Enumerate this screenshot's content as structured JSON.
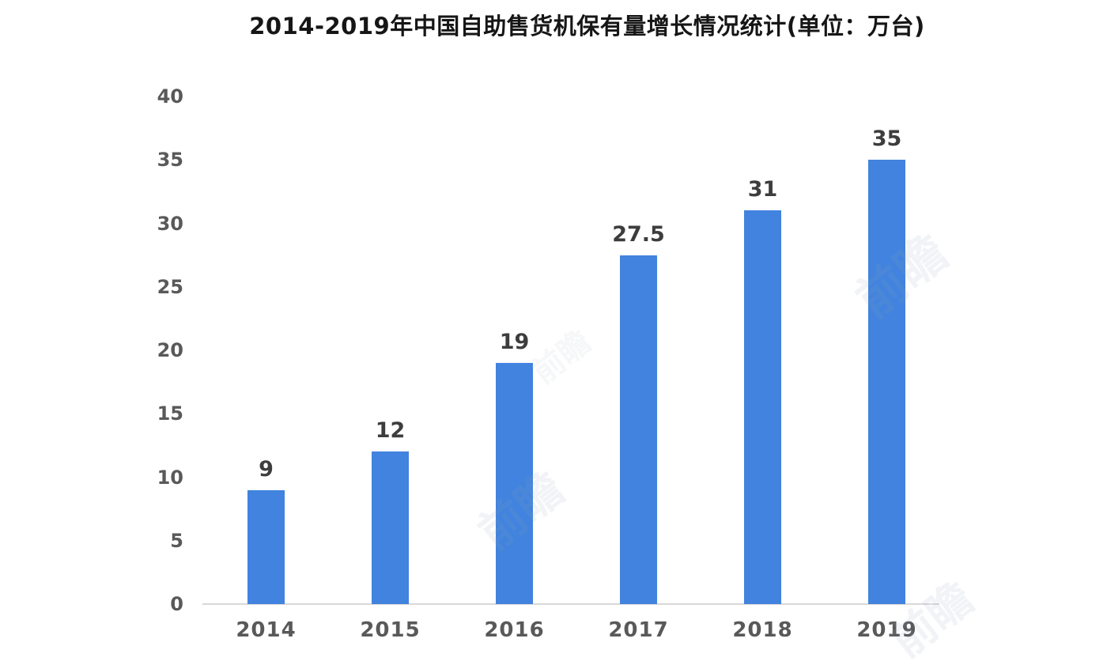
{
  "chart_data": {
    "type": "bar",
    "title": "2014-2019年中国自助售货机保有量增长情况统计(单位：万台)",
    "categories": [
      "2014",
      "2015",
      "2016",
      "2017",
      "2018",
      "2019"
    ],
    "values": [
      9,
      12,
      19,
      27.5,
      31,
      35
    ],
    "data_labels": [
      "9",
      "12",
      "19",
      "27.5",
      "31",
      "35"
    ],
    "xlabel": "",
    "ylabel": "",
    "ylim": [
      0,
      40
    ],
    "yticks": [
      0,
      5,
      10,
      15,
      20,
      25,
      30,
      35,
      40
    ],
    "grid": false,
    "legend": null,
    "bar_color": "#4183de",
    "axis_line_color": "#d9d9d9",
    "tick_label_color": "#595959",
    "data_label_color": "#3d3d3d",
    "title_color": "#161616",
    "background_color": "#ffffff"
  },
  "watermark": {
    "text": "前瞻"
  }
}
